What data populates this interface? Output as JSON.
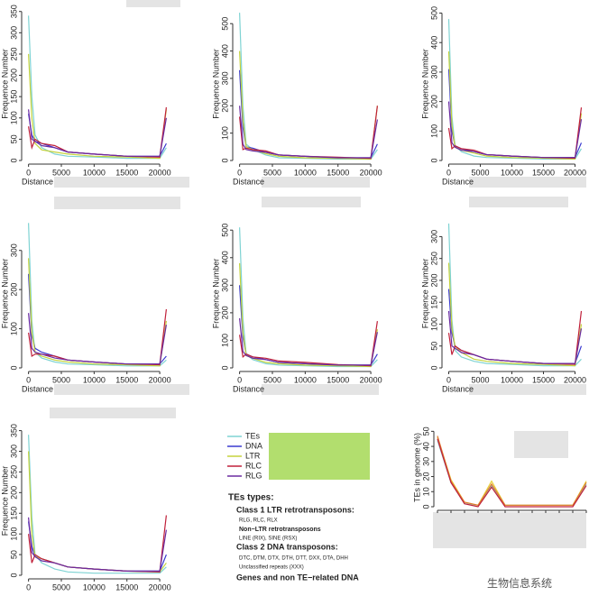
{
  "chart_data": [
    {
      "type": "line",
      "x_label": "Distance",
      "y_label": "Frequence Number",
      "x": [
        0,
        500,
        1000,
        2000,
        4000,
        6000,
        10000,
        15000,
        20000,
        21000
      ],
      "xlim": [
        -500,
        21500
      ],
      "xticks": [
        0,
        5000,
        10000,
        15000,
        20000
      ],
      "ylim": [
        0,
        360
      ],
      "yticks": [
        0,
        50,
        100,
        150,
        200,
        250,
        300,
        350
      ],
      "series": [
        {
          "name": "TEs",
          "color": "#7fd3d3",
          "values": [
            340,
            150,
            60,
            30,
            15,
            10,
            8,
            5,
            5,
            30
          ]
        },
        {
          "name": "DNA",
          "color": "#3a3ad0",
          "values": [
            110,
            60,
            45,
            40,
            30,
            20,
            15,
            10,
            10,
            40
          ]
        },
        {
          "name": "LTR",
          "color": "#c5d23c",
          "values": [
            250,
            100,
            40,
            25,
            20,
            15,
            10,
            8,
            5,
            120
          ]
        },
        {
          "name": "RLC",
          "color": "#c0203a",
          "values": [
            80,
            30,
            50,
            40,
            35,
            20,
            15,
            10,
            8,
            125
          ]
        },
        {
          "name": "RLG",
          "color": "#6a2aa0",
          "values": [
            120,
            50,
            45,
            35,
            30,
            20,
            15,
            10,
            10,
            100
          ]
        }
      ]
    },
    {
      "type": "line",
      "x_label": "Distance",
      "y_label": "Frequence Number",
      "x": [
        0,
        500,
        1000,
        2000,
        4000,
        6000,
        10000,
        15000,
        20000,
        21000
      ],
      "xlim": [
        -500,
        21500
      ],
      "xticks": [
        0,
        5000,
        10000,
        15000,
        20000
      ],
      "ylim": [
        0,
        560
      ],
      "yticks": [
        0,
        100,
        200,
        300,
        400,
        500
      ],
      "series": [
        {
          "name": "TEs",
          "color": "#7fd3d3",
          "values": [
            540,
            200,
            60,
            40,
            20,
            10,
            8,
            5,
            5,
            40
          ]
        },
        {
          "name": "DNA",
          "color": "#3a3ad0",
          "values": [
            330,
            120,
            50,
            45,
            30,
            20,
            15,
            10,
            10,
            60
          ]
        },
        {
          "name": "LTR",
          "color": "#c5d23c",
          "values": [
            400,
            150,
            50,
            40,
            25,
            15,
            10,
            8,
            5,
            200
          ]
        },
        {
          "name": "RLC",
          "color": "#c0203a",
          "values": [
            160,
            40,
            45,
            40,
            35,
            20,
            15,
            12,
            8,
            200
          ]
        },
        {
          "name": "RLG",
          "color": "#6a2aa0",
          "values": [
            200,
            60,
            40,
            35,
            30,
            20,
            15,
            10,
            10,
            150
          ]
        }
      ]
    },
    {
      "type": "line",
      "x_label": "Distance",
      "y_label": "Frequence Number",
      "x": [
        0,
        500,
        1000,
        2000,
        4000,
        6000,
        10000,
        15000,
        20000,
        21000
      ],
      "xlim": [
        -500,
        21500
      ],
      "xticks": [
        0,
        5000,
        10000,
        15000,
        20000
      ],
      "ylim": [
        0,
        520
      ],
      "yticks": [
        0,
        100,
        200,
        300,
        400,
        500
      ],
      "series": [
        {
          "name": "TEs",
          "color": "#7fd3d3",
          "values": [
            480,
            150,
            50,
            30,
            15,
            10,
            8,
            5,
            5,
            40
          ]
        },
        {
          "name": "DNA",
          "color": "#3a3ad0",
          "values": [
            310,
            100,
            50,
            40,
            30,
            20,
            15,
            10,
            10,
            60
          ]
        },
        {
          "name": "LTR",
          "color": "#c5d23c",
          "values": [
            370,
            120,
            45,
            35,
            25,
            15,
            10,
            8,
            5,
            160
          ]
        },
        {
          "name": "RLC",
          "color": "#c0203a",
          "values": [
            110,
            40,
            50,
            40,
            35,
            20,
            15,
            10,
            8,
            180
          ]
        },
        {
          "name": "RLG",
          "color": "#6a2aa0",
          "values": [
            200,
            60,
            45,
            35,
            30,
            20,
            15,
            10,
            10,
            140
          ]
        }
      ]
    },
    {
      "type": "line",
      "x_label": "Distance",
      "y_label": "Frequence Number",
      "x": [
        0,
        500,
        1000,
        2000,
        4000,
        6000,
        10000,
        15000,
        20000,
        21000
      ],
      "xlim": [
        -500,
        21500
      ],
      "xticks": [
        0,
        5000,
        10000,
        15000,
        20000
      ],
      "ylim": [
        0,
        380
      ],
      "yticks": [
        0,
        100,
        200,
        300
      ],
      "series": [
        {
          "name": "TEs",
          "color": "#7fd3d3",
          "values": [
            370,
            120,
            40,
            25,
            15,
            10,
            8,
            5,
            5,
            20
          ]
        },
        {
          "name": "DNA",
          "color": "#3a3ad0",
          "values": [
            240,
            80,
            50,
            40,
            30,
            20,
            15,
            10,
            10,
            30
          ]
        },
        {
          "name": "LTR",
          "color": "#c5d23c",
          "values": [
            280,
            90,
            40,
            30,
            20,
            15,
            10,
            8,
            5,
            120
          ]
        },
        {
          "name": "RLC",
          "color": "#c0203a",
          "values": [
            90,
            30,
            35,
            35,
            30,
            20,
            15,
            10,
            8,
            150
          ]
        },
        {
          "name": "RLG",
          "color": "#6a2aa0",
          "values": [
            140,
            50,
            40,
            35,
            25,
            20,
            15,
            10,
            10,
            110
          ]
        }
      ]
    },
    {
      "type": "line",
      "x_label": "Distance",
      "y_label": "Frequence Number",
      "x": [
        0,
        500,
        1000,
        2000,
        4000,
        6000,
        10000,
        15000,
        20000,
        21000
      ],
      "xlim": [
        -500,
        21500
      ],
      "xticks": [
        0,
        5000,
        10000,
        15000,
        20000
      ],
      "ylim": [
        0,
        540
      ],
      "yticks": [
        0,
        100,
        200,
        300,
        400,
        500
      ],
      "series": [
        {
          "name": "TEs",
          "color": "#7fd3d3",
          "values": [
            510,
            180,
            50,
            30,
            15,
            10,
            8,
            5,
            5,
            30
          ]
        },
        {
          "name": "DNA",
          "color": "#3a3ad0",
          "values": [
            300,
            110,
            50,
            40,
            30,
            20,
            15,
            10,
            10,
            50
          ]
        },
        {
          "name": "LTR",
          "color": "#c5d23c",
          "values": [
            380,
            130,
            45,
            35,
            20,
            15,
            10,
            8,
            5,
            140
          ]
        },
        {
          "name": "RLC",
          "color": "#c0203a",
          "values": [
            120,
            40,
            50,
            40,
            35,
            25,
            20,
            12,
            8,
            170
          ]
        },
        {
          "name": "RLG",
          "color": "#6a2aa0",
          "values": [
            180,
            60,
            45,
            35,
            30,
            20,
            15,
            10,
            10,
            130
          ]
        }
      ]
    },
    {
      "type": "line",
      "x_label": "Distance",
      "y_label": "Frequence Number",
      "x": [
        0,
        500,
        1000,
        2000,
        4000,
        6000,
        10000,
        15000,
        20000,
        21000
      ],
      "xlim": [
        -500,
        21500
      ],
      "xticks": [
        0,
        5000,
        10000,
        15000,
        20000
      ],
      "ylim": [
        0,
        340
      ],
      "yticks": [
        0,
        50,
        100,
        150,
        200,
        250,
        300
      ],
      "series": [
        {
          "name": "TEs",
          "color": "#7fd3d3",
          "values": [
            330,
            110,
            40,
            25,
            15,
            10,
            8,
            5,
            5,
            20
          ]
        },
        {
          "name": "DNA",
          "color": "#3a3ad0",
          "values": [
            180,
            80,
            50,
            40,
            30,
            20,
            15,
            10,
            10,
            50
          ]
        },
        {
          "name": "LTR",
          "color": "#c5d23c",
          "values": [
            240,
            90,
            50,
            35,
            20,
            15,
            10,
            8,
            5,
            100
          ]
        },
        {
          "name": "RLC",
          "color": "#c0203a",
          "values": [
            80,
            30,
            50,
            40,
            30,
            20,
            15,
            10,
            8,
            130
          ]
        },
        {
          "name": "RLG",
          "color": "#6a2aa0",
          "values": [
            130,
            50,
            45,
            35,
            30,
            20,
            15,
            10,
            10,
            90
          ]
        }
      ]
    },
    {
      "type": "line",
      "y_label": "Frequence Number",
      "x": [
        0,
        500,
        1000,
        2000,
        4000,
        6000,
        10000,
        15000,
        20000,
        21000
      ],
      "xlim": [
        -500,
        21500
      ],
      "xticks": [
        0,
        5000,
        10000,
        15000,
        20000
      ],
      "ylim": [
        0,
        360
      ],
      "yticks": [
        0,
        50,
        100,
        150,
        200,
        250,
        300,
        350
      ],
      "series": [
        {
          "name": "TEs",
          "color": "#7fd3d3",
          "values": [
            340,
            140,
            50,
            30,
            15,
            8,
            5,
            5,
            5,
            20
          ]
        },
        {
          "name": "DNA",
          "color": "#3a3ad0",
          "values": [
            130,
            70,
            45,
            40,
            30,
            20,
            15,
            10,
            10,
            50
          ]
        },
        {
          "name": "LTR",
          "color": "#c5d23c",
          "values": [
            300,
            100,
            45,
            40,
            30,
            20,
            15,
            10,
            8,
            30
          ]
        },
        {
          "name": "RLC",
          "color": "#c0203a",
          "values": [
            100,
            30,
            50,
            40,
            30,
            20,
            15,
            10,
            8,
            145
          ]
        },
        {
          "name": "RLG",
          "color": "#6a2aa0",
          "values": [
            140,
            55,
            45,
            35,
            30,
            20,
            15,
            10,
            10,
            110
          ]
        }
      ]
    },
    {
      "type": "category-line",
      "y_label": "TEs in genome (%)",
      "categories": [
        null,
        null,
        null,
        null,
        null,
        null,
        null,
        null,
        null,
        null,
        null,
        null
      ],
      "ylim": [
        0,
        52
      ],
      "yticks": [
        0,
        10,
        20,
        30,
        40,
        50
      ],
      "series": [
        {
          "color": "#7fd3d3",
          "values": [
            44,
            16,
            2,
            1,
            14,
            1,
            1,
            1,
            1,
            1,
            1,
            15
          ]
        },
        {
          "color": "#e8d23c",
          "values": [
            46,
            18,
            3,
            1,
            17,
            1,
            1,
            1,
            1,
            1,
            1,
            17
          ]
        },
        {
          "color": "#e07a30",
          "values": [
            47,
            17,
            3,
            1,
            15,
            1,
            1,
            1,
            1,
            1,
            1,
            16
          ]
        },
        {
          "color": "#c0203a",
          "values": [
            45,
            16,
            2,
            0,
            13,
            0,
            0,
            0,
            0,
            0,
            0,
            14
          ]
        }
      ]
    }
  ],
  "notes": {
    "heading": "TEs types:",
    "lines": [
      "Class 1 LTR retrotransposons:",
      "RLG, RLC, RLX",
      "Non−LTR retrotransposons",
      "LINE (RIX), SINE (RSX)",
      "Class 2 DNA transposons:",
      "DTC, DTM, DTX, DTH, DTT, DXX, DTA, DHH",
      "Unclassified repeats (XXX)",
      "Genes and non TE−related DNA"
    ]
  },
  "watermark": "生物信息系统"
}
